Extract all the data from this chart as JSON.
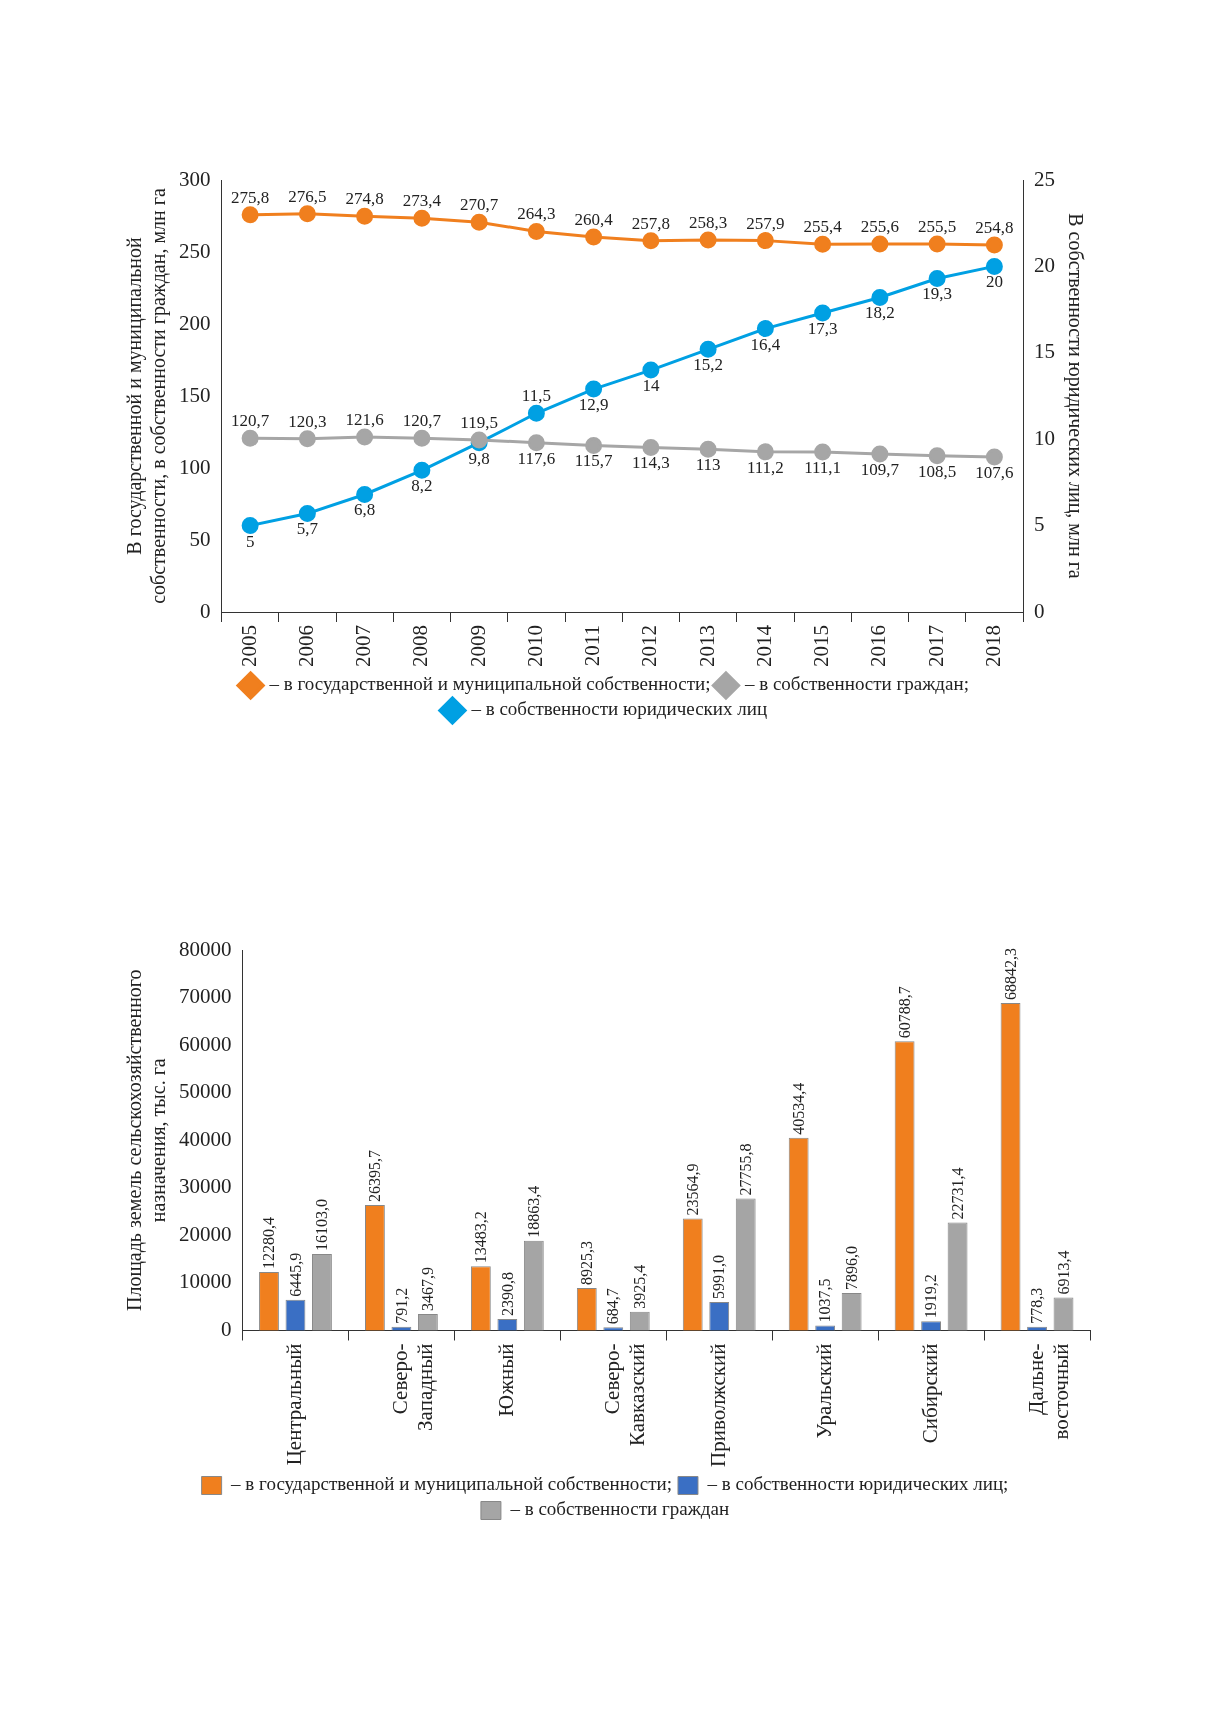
{
  "chart_data": [
    {
      "type": "line",
      "ylabel": "В государственной и муниципальной собственности, в собственности граждан, млн га",
      "y2label": "В собственности юридических лиц, млн га",
      "categories": [
        "2005",
        "2006",
        "2007",
        "2008",
        "2009",
        "2010",
        "2011",
        "2012",
        "2013",
        "2014",
        "2015",
        "2016",
        "2017",
        "2018"
      ],
      "series": [
        {
          "name": "– в государственной и муниципальной собственности;",
          "color": "#f07f1e",
          "values": [
            275.8,
            276.5,
            274.8,
            273.4,
            270.7,
            264.3,
            260.4,
            257.8,
            258.3,
            257.9,
            255.4,
            255.6,
            255.5,
            254.8
          ],
          "value_labels": [
            "275,8",
            "276,5",
            "274,8",
            "273,4",
            "270,7",
            "264,3",
            "260,4",
            "257,8",
            "258,3",
            "257,9",
            "255,4",
            "255,6",
            "255,5",
            "254,8"
          ]
        },
        {
          "name": "– в собственности граждан;",
          "color": "#a6a6a6",
          "values": [
            120.7,
            120.3,
            121.6,
            120.7,
            119.5,
            117.6,
            115.7,
            114.3,
            113,
            111.2,
            111.1,
            109.7,
            108.5,
            107.6
          ],
          "value_labels": [
            "120,7",
            "120,3",
            "121,6",
            "120,7",
            "119,5",
            "117,6",
            "115,7",
            "114,3",
            "113",
            "111,2",
            "111,1",
            "109,7",
            "108,5",
            "107,6"
          ]
        },
        {
          "name": "– в собственности юридических лиц",
          "color": "#00a0e3",
          "axis": "y2",
          "values": [
            5,
            5.7,
            6.8,
            8.2,
            9.8,
            11.5,
            12.9,
            14,
            15.2,
            16.4,
            17.3,
            18.2,
            19.3,
            20
          ],
          "value_labels": [
            "5",
            "5,7",
            "6,8",
            "8,2",
            "9,8",
            "11,5",
            "12,9",
            "14",
            "15,2",
            "16,4",
            "17,3",
            "18,2",
            "19,3",
            "20"
          ]
        }
      ],
      "ylim": [
        0,
        300
      ],
      "yticks": [
        0,
        50,
        100,
        150,
        200,
        250,
        300
      ],
      "y2lim": [
        0,
        25
      ],
      "y2ticks": [
        0,
        5,
        10,
        15,
        20,
        25
      ],
      "grid": false,
      "legend": "bottom",
      "marker": "circle"
    },
    {
      "type": "bar",
      "ylabel": "Площадь земель сельскохозяйственного назначения, тыс. га",
      "categories": [
        "Центральный",
        "Северо-Западный",
        "Южный",
        "Северо-Кавказский",
        "Приволжский",
        "Уральский",
        "Сибирский",
        "Дальне-восточный"
      ],
      "series": [
        {
          "name": "– в государственной и муниципальной собственности;",
          "color": "#f07f1e",
          "values": [
            12280.4,
            26395.7,
            13483.2,
            8925.3,
            23564.9,
            40534.4,
            60788.7,
            68842.3
          ],
          "value_labels": [
            "12280,4",
            "26395,7",
            "13483,2",
            "8925,3",
            "23564,9",
            "40534,4",
            "60788,7",
            "68842,3"
          ]
        },
        {
          "name": "– в собственности юридических лиц;",
          "color": "#3a6fc4",
          "values": [
            6445.9,
            791.2,
            2390.8,
            684.7,
            5991.0,
            1037.5,
            1919.2,
            778.3
          ],
          "value_labels": [
            "6445,9",
            "791,2",
            "2390,8",
            "684,7",
            "5991,0",
            "1037,5",
            "1919,2",
            "778,3"
          ]
        },
        {
          "name": "– в собственности граждан",
          "color": "#a5a5a5",
          "values": [
            16103.0,
            3467.9,
            18863.4,
            3925.4,
            27755.8,
            7896.0,
            22731.4,
            6913.4
          ],
          "value_labels": [
            "16103,0",
            "3467,9",
            "18863,4",
            "3925,4",
            "27755,8",
            "7896,0",
            "22731,4",
            "6913,4"
          ]
        }
      ],
      "ylim": [
        0,
        80000
      ],
      "yticks": [
        0,
        10000,
        20000,
        30000,
        40000,
        50000,
        60000,
        70000,
        80000
      ],
      "grid": false,
      "legend": "bottom"
    }
  ]
}
